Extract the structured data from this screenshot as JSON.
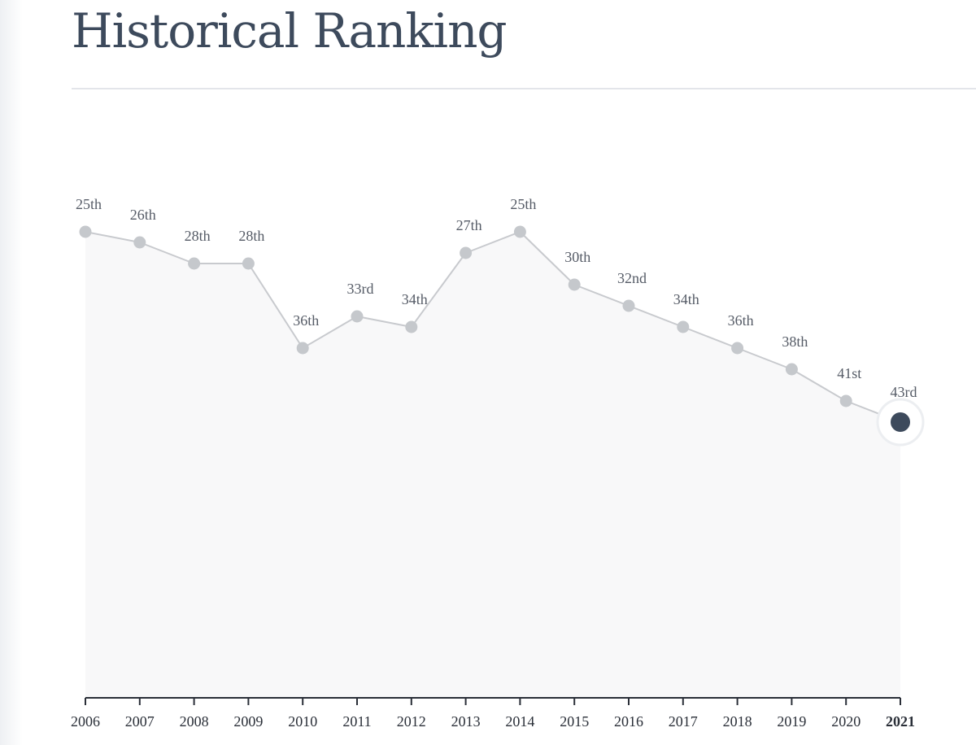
{
  "page": {
    "title": "Historical Ranking"
  },
  "chart_data": {
    "type": "line",
    "title": "Historical Ranking",
    "xlabel": "",
    "ylabel": "",
    "x": [
      "2006",
      "2007",
      "2008",
      "2009",
      "2010",
      "2011",
      "2012",
      "2013",
      "2014",
      "2015",
      "2016",
      "2017",
      "2018",
      "2019",
      "2020",
      "2021"
    ],
    "values": [
      25,
      26,
      28,
      28,
      36,
      33,
      34,
      27,
      25,
      30,
      32,
      34,
      36,
      38,
      41,
      43
    ],
    "labels": [
      "25th",
      "26th",
      "28th",
      "28th",
      "36th",
      "33rd",
      "34th",
      "27th",
      "25th",
      "30th",
      "32nd",
      "34th",
      "36th",
      "38th",
      "41st",
      "43rd"
    ],
    "highlight": "2021",
    "y_axis_inverted": true,
    "grid": false,
    "legend": "none",
    "colors": {
      "line": "#c8cace",
      "point": "#c5c8cc",
      "area": "#f8f8f9",
      "highlight_point": "#3d4a5c",
      "axis": "#2a2f38"
    }
  }
}
